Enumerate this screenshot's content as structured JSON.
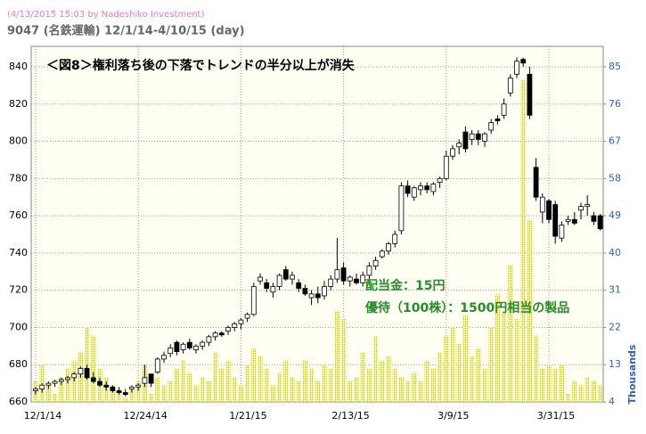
{
  "chart_data": {
    "type": "candlestick",
    "header": "(4/13/2015 15:03 by Nadeshiko Investment)",
    "title": "9047 (名鉄運輸) 12/1/14-4/10/15 (day)",
    "annotations": [
      "＜図8＞権利落ち後の下落でトレンドの半分以上が消失",
      "配当金：15円",
      "優待（100株）：1500円相当の製品"
    ],
    "y2label": "Thousands",
    "categories": [
      "12/1/14",
      null,
      null,
      null,
      null,
      null,
      null,
      null,
      null,
      null,
      null,
      null,
      null,
      null,
      null,
      null,
      "12/24/14",
      null,
      null,
      null,
      null,
      null,
      null,
      null,
      null,
      null,
      null,
      null,
      null,
      null,
      null,
      null,
      "1/21/15",
      null,
      null,
      null,
      null,
      null,
      null,
      null,
      null,
      null,
      null,
      null,
      null,
      null,
      null,
      null,
      "2/13/15",
      null,
      null,
      null,
      null,
      null,
      null,
      null,
      null,
      null,
      null,
      null,
      null,
      null,
      null,
      null,
      "3/9/15",
      null,
      null,
      null,
      null,
      null,
      null,
      null,
      null,
      null,
      null,
      null,
      null,
      null,
      null,
      null,
      "3/31/15",
      null,
      null,
      null,
      null,
      null,
      null,
      null,
      null
    ],
    "open": [
      666,
      667,
      669,
      670,
      671,
      672,
      673,
      675,
      678,
      673,
      671,
      669,
      668,
      666,
      665,
      667,
      668,
      670,
      675,
      676,
      683,
      686,
      692,
      688,
      692,
      688,
      690,
      692,
      695,
      697,
      698,
      700,
      702,
      705,
      707,
      725,
      724,
      719,
      722,
      731,
      726,
      724,
      721,
      716,
      718,
      717,
      722,
      726,
      732,
      725,
      726,
      724,
      728,
      733,
      738,
      741,
      745,
      752,
      776,
      770,
      774,
      776,
      773,
      778,
      780,
      792,
      797,
      805,
      801,
      804,
      800,
      806,
      812,
      814,
      826,
      836,
      844,
      836,
      786,
      762,
      768,
      766,
      748,
      757,
      758,
      763,
      765,
      760,
      760
    ],
    "high": [
      668,
      670,
      671,
      672,
      673,
      674,
      676,
      679,
      680,
      676,
      673,
      671,
      669,
      668,
      667,
      669,
      670,
      680,
      675,
      684,
      687,
      691,
      693,
      692,
      694,
      691,
      693,
      696,
      698,
      698,
      701,
      703,
      705,
      708,
      724,
      729,
      726,
      724,
      729,
      733,
      730,
      726,
      723,
      720,
      722,
      725,
      728,
      748,
      735,
      728,
      729,
      730,
      735,
      738,
      742,
      746,
      752,
      778,
      779,
      776,
      778,
      778,
      778,
      781,
      795,
      798,
      801,
      808,
      806,
      806,
      805,
      812,
      814,
      823,
      836,
      845,
      845,
      840,
      791,
      772,
      769,
      768,
      757,
      760,
      762,
      767,
      771,
      762,
      761
    ],
    "low": [
      664,
      665,
      667,
      668,
      669,
      670,
      671,
      673,
      672,
      670,
      668,
      666,
      665,
      664,
      663,
      665,
      666,
      668,
      668,
      675,
      681,
      684,
      685,
      686,
      688,
      686,
      688,
      690,
      693,
      695,
      696,
      698,
      699,
      703,
      706,
      723,
      719,
      716,
      720,
      725,
      723,
      719,
      717,
      712,
      713,
      715,
      720,
      724,
      723,
      722,
      723,
      722,
      726,
      731,
      737,
      739,
      743,
      750,
      770,
      768,
      771,
      772,
      771,
      775,
      779,
      790,
      793,
      794,
      798,
      798,
      797,
      804,
      809,
      812,
      824,
      834,
      840,
      812,
      768,
      756,
      756,
      745,
      746,
      755,
      755,
      758,
      760,
      755,
      752
    ],
    "close": [
      667,
      669,
      670,
      671,
      672,
      673,
      675,
      678,
      673,
      671,
      669,
      668,
      666,
      665,
      664,
      668,
      669,
      673,
      670,
      683,
      685,
      689,
      687,
      691,
      689,
      690,
      692,
      695,
      697,
      696,
      700,
      702,
      704,
      707,
      722,
      727,
      721,
      722,
      728,
      726,
      728,
      721,
      718,
      718,
      716,
      722,
      726,
      731,
      725,
      727,
      724,
      728,
      733,
      736,
      741,
      745,
      750,
      776,
      772,
      775,
      776,
      774,
      777,
      780,
      792,
      796,
      799,
      796,
      804,
      801,
      804,
      810,
      811,
      820,
      834,
      843,
      842,
      814,
      770,
      770,
      758,
      749,
      755,
      758,
      756,
      765,
      766,
      757,
      753
    ],
    "volume": [
      9,
      13,
      8,
      6,
      10,
      12,
      14,
      16,
      22,
      20,
      12,
      10,
      8,
      6,
      5,
      7,
      9,
      13,
      6,
      10,
      8,
      9,
      12,
      14,
      11,
      8,
      10,
      9,
      16,
      12,
      14,
      10,
      8,
      13,
      17,
      15,
      12,
      8,
      11,
      14,
      10,
      9,
      14,
      12,
      9,
      13,
      12,
      26,
      24,
      9,
      10,
      16,
      12,
      20,
      14,
      15,
      12,
      10,
      9,
      11,
      9,
      14,
      12,
      16,
      20,
      22,
      18,
      25,
      15,
      17,
      12,
      22,
      30,
      26,
      37,
      24,
      82,
      48,
      20,
      12,
      13,
      12,
      13,
      6,
      9,
      8,
      10,
      9,
      8
    ],
    "up_color": "#ffffff",
    "down_color": "#000000",
    "volume_color": "#c8c860",
    "ylim": [
      660,
      851
    ],
    "yticks": [
      660,
      680,
      700,
      720,
      740,
      760,
      780,
      800,
      820,
      840
    ],
    "y2lim": [
      4,
      89.95
    ],
    "y2ticks": [
      4,
      13,
      22,
      31,
      40,
      49,
      58,
      67,
      76,
      85
    ],
    "grid": true
  }
}
